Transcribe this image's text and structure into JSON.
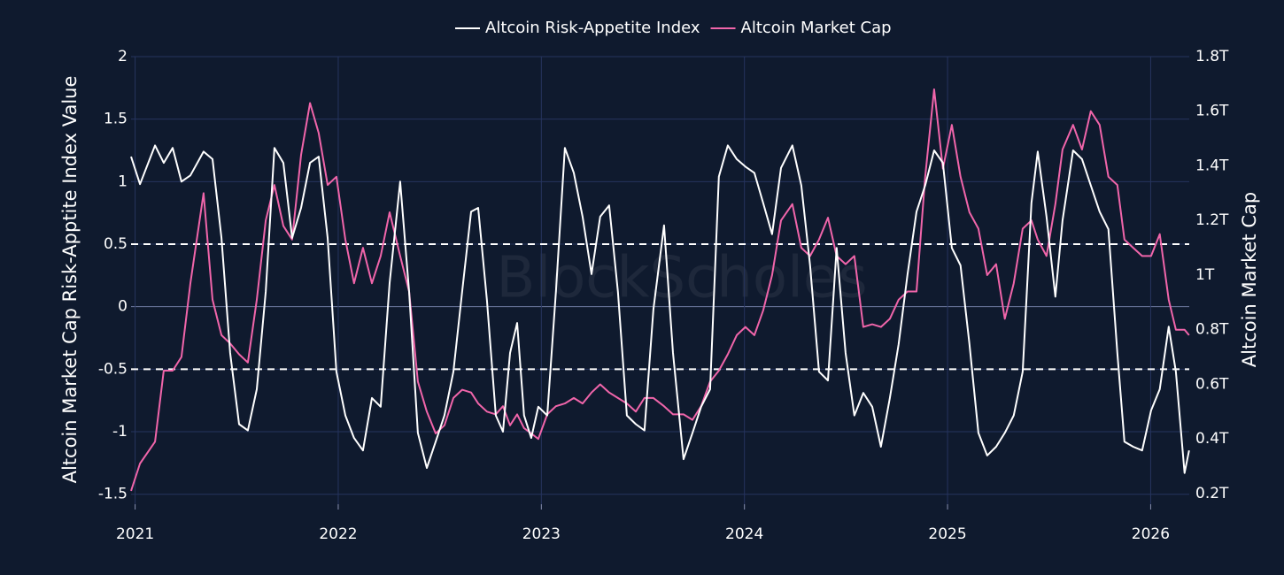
{
  "chart_data": {
    "type": "line",
    "watermark": "BlockScholes",
    "ylabel": "Altcoin Market Cap Risk-Apptite Index Value",
    "y2label": "Altcoin Market Cap",
    "xlim": [
      2020.98,
      2026.19
    ],
    "xticks": [
      2021,
      2022,
      2023,
      2024,
      2025,
      2026
    ],
    "ylim": [
      -1.58,
      2
    ],
    "yticks": [
      -1.5,
      -1,
      -0.5,
      0,
      0.5,
      1,
      1.5,
      2
    ],
    "y2lim": [
      0.161,
      1.8
    ],
    "y2ticks": [
      {
        "value": 0.2,
        "label": "0.2T"
      },
      {
        "value": 0.4,
        "label": "0.4T"
      },
      {
        "value": 0.6,
        "label": "0.6T"
      },
      {
        "value": 0.8,
        "label": "0.8T"
      },
      {
        "value": 1,
        "label": "1T"
      },
      {
        "value": 1.2,
        "label": "1.2T"
      },
      {
        "value": 1.4,
        "label": "1.4T"
      },
      {
        "value": 1.6,
        "label": "1.6T"
      },
      {
        "value": 1.8,
        "label": "1.8T"
      }
    ],
    "reference_lines": [
      0.5,
      -0.5
    ],
    "grid": true,
    "legend": "top",
    "x": [
      2020.98,
      2021.024,
      2021.098,
      2021.141,
      2021.185,
      2021.228,
      2021.272,
      2021.337,
      2021.381,
      2021.425,
      2021.468,
      2021.512,
      2021.555,
      2021.599,
      2021.643,
      2021.686,
      2021.73,
      2021.773,
      2021.817,
      2021.861,
      2021.904,
      2021.948,
      2021.991,
      2022.035,
      2022.078,
      2022.122,
      2022.166,
      2022.209,
      2022.253,
      2022.305,
      2022.349,
      2022.392,
      2022.436,
      2022.48,
      2022.523,
      2022.567,
      2022.61,
      2022.654,
      2022.689,
      2022.732,
      2022.776,
      2022.811,
      2022.846,
      2022.881,
      2022.915,
      2022.95,
      2022.985,
      2023.029,
      2023.072,
      2023.116,
      2023.16,
      2023.203,
      2023.247,
      2023.29,
      2023.334,
      2023.377,
      2023.421,
      2023.465,
      2023.508,
      2023.552,
      2023.604,
      2023.648,
      2023.7,
      2023.744,
      2023.787,
      2023.831,
      2023.874,
      2023.918,
      2023.962,
      2024.005,
      2024.049,
      2024.092,
      2024.136,
      2024.18,
      2024.236,
      2024.28,
      2024.323,
      2024.367,
      2024.411,
      2024.454,
      2024.498,
      2024.541,
      2024.585,
      2024.629,
      2024.672,
      2024.716,
      2024.759,
      2024.803,
      2024.847,
      2024.89,
      2024.934,
      2024.977,
      2025.021,
      2025.064,
      2025.108,
      2025.152,
      2025.195,
      2025.239,
      2025.282,
      2025.326,
      2025.37,
      2025.413,
      2025.444,
      2025.487,
      2025.531,
      2025.566,
      2025.618,
      2025.662,
      2025.705,
      2025.749,
      2025.792,
      2025.836,
      2025.871,
      2025.914,
      2025.958,
      2026.002,
      2026.045,
      2026.089,
      2026.124,
      2026.167,
      2026.189
    ],
    "series": [
      {
        "name": "Altcoin Risk-Appetite Index",
        "color": "#ffffff",
        "axis": "y",
        "values": [
          1.2,
          0.98,
          1.29,
          1.15,
          1.27,
          1.0,
          1.05,
          1.24,
          1.18,
          0.55,
          -0.37,
          -0.94,
          -0.99,
          -0.66,
          0.12,
          1.27,
          1.15,
          0.55,
          0.79,
          1.15,
          1.2,
          0.55,
          -0.52,
          -0.87,
          -1.05,
          -1.15,
          -0.73,
          -0.8,
          0.19,
          1.0,
          0.12,
          -1.01,
          -1.29,
          -1.08,
          -0.87,
          -0.52,
          0.12,
          0.76,
          0.79,
          0.05,
          -0.87,
          -1.0,
          -0.37,
          -0.13,
          -0.87,
          -1.05,
          -0.8,
          -0.87,
          0.12,
          1.27,
          1.07,
          0.72,
          0.26,
          0.72,
          0.81,
          0.12,
          -0.87,
          -0.94,
          -0.99,
          -0.02,
          0.65,
          -0.37,
          -1.22,
          -1.01,
          -0.8,
          -0.66,
          1.04,
          1.29,
          1.18,
          1.12,
          1.07,
          0.83,
          0.58,
          1.11,
          1.29,
          0.97,
          0.33,
          -0.52,
          -0.59,
          0.47,
          -0.37,
          -0.87,
          -0.69,
          -0.8,
          -1.12,
          -0.73,
          -0.3,
          0.26,
          0.76,
          0.97,
          1.25,
          1.15,
          0.47,
          0.33,
          -0.3,
          -1.01,
          -1.19,
          -1.12,
          -1.01,
          -0.87,
          -0.52,
          0.83,
          1.24,
          0.72,
          0.08,
          0.69,
          1.25,
          1.18,
          0.97,
          0.76,
          0.62,
          -0.37,
          -1.08,
          -1.12,
          -1.15,
          -0.83,
          -0.66,
          -0.16,
          -0.52,
          -1.33,
          -1.15
        ]
      },
      {
        "name": "Altcoin Market Cap",
        "color": "#f065aa",
        "axis": "y2",
        "values": [
          0.21,
          0.31,
          0.39,
          0.65,
          0.65,
          0.7,
          0.97,
          1.3,
          0.91,
          0.78,
          0.75,
          0.71,
          0.68,
          0.91,
          1.2,
          1.33,
          1.18,
          1.13,
          1.44,
          1.63,
          1.52,
          1.33,
          1.36,
          1.13,
          0.97,
          1.1,
          0.97,
          1.07,
          1.23,
          1.07,
          0.94,
          0.61,
          0.5,
          0.42,
          0.45,
          0.55,
          0.58,
          0.57,
          0.53,
          0.5,
          0.49,
          0.52,
          0.45,
          0.49,
          0.44,
          0.42,
          0.4,
          0.49,
          0.52,
          0.53,
          0.55,
          0.53,
          0.57,
          0.6,
          0.57,
          0.55,
          0.53,
          0.5,
          0.55,
          0.55,
          0.52,
          0.49,
          0.49,
          0.47,
          0.52,
          0.61,
          0.65,
          0.71,
          0.78,
          0.81,
          0.78,
          0.87,
          1.0,
          1.2,
          1.26,
          1.1,
          1.07,
          1.13,
          1.21,
          1.07,
          1.04,
          1.07,
          0.81,
          0.82,
          0.81,
          0.84,
          0.91,
          0.94,
          0.94,
          1.36,
          1.68,
          1.39,
          1.55,
          1.36,
          1.23,
          1.17,
          1.0,
          1.04,
          0.84,
          0.97,
          1.17,
          1.2,
          1.13,
          1.07,
          1.26,
          1.46,
          1.55,
          1.46,
          1.6,
          1.55,
          1.36,
          1.33,
          1.13,
          1.1,
          1.07,
          1.07,
          1.15,
          0.91,
          0.8,
          0.8,
          0.78
        ]
      }
    ]
  }
}
